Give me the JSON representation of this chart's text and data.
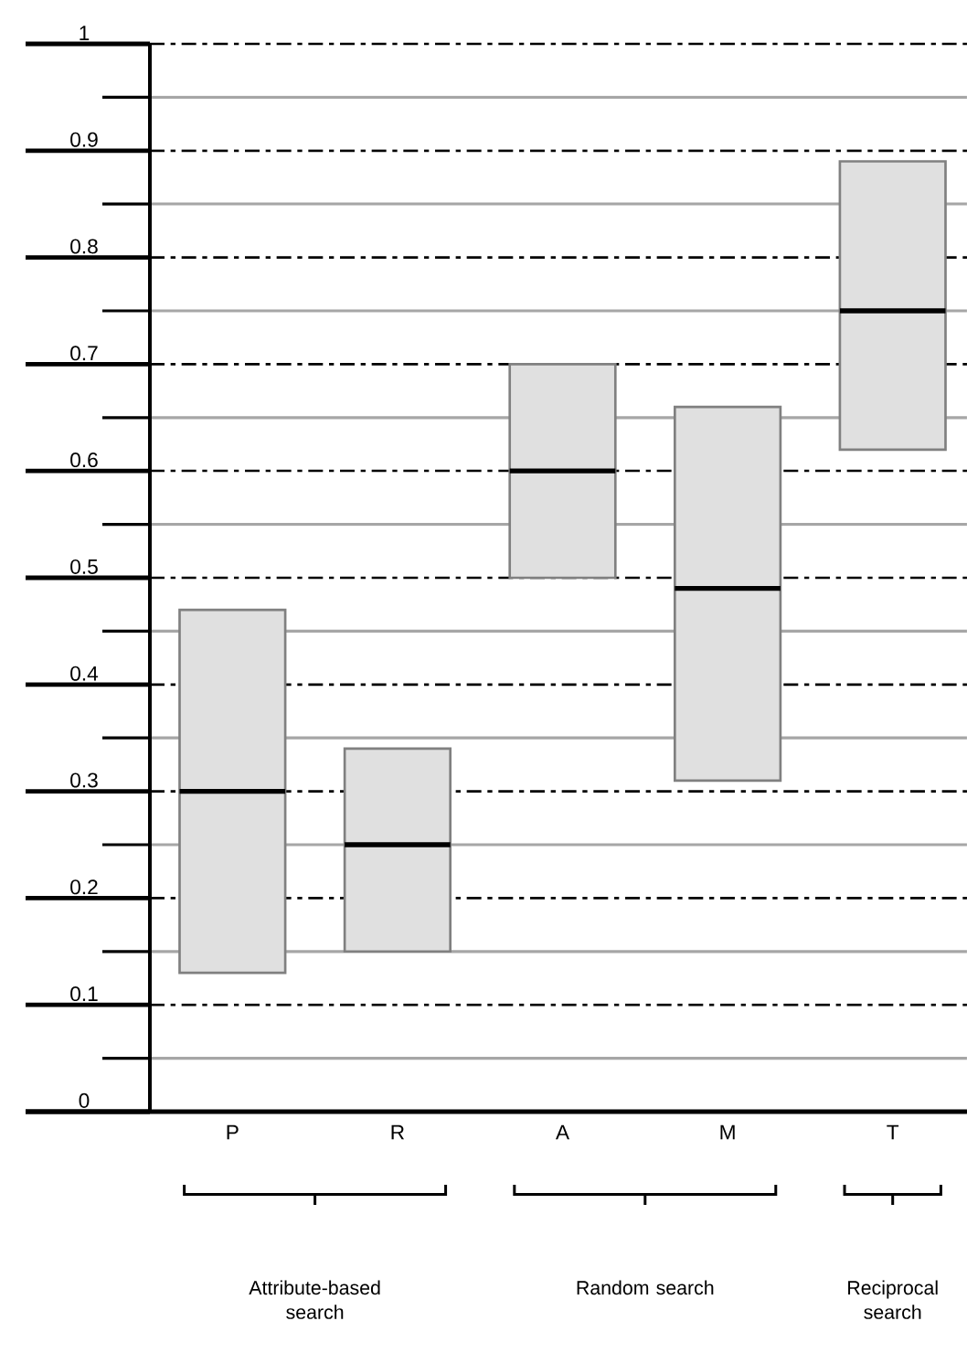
{
  "chart_data": {
    "type": "box",
    "categories": [
      "P",
      "R",
      "A",
      "M",
      "T"
    ],
    "series": [
      {
        "color": "#e0e0e0",
        "boxes": [
          {
            "low": 0.13,
            "q1": 0.13,
            "median": 0.3,
            "q3": 0.47,
            "high": 0.47
          },
          {
            "low": 0.15,
            "q1": 0.15,
            "median": 0.25,
            "q3": 0.34,
            "high": 0.34
          },
          {
            "low": 0.5,
            "q1": 0.5,
            "median": 0.6,
            "q3": 0.7,
            "high": 0.7
          },
          {
            "low": 0.31,
            "q1": 0.31,
            "median": 0.49,
            "q3": 0.66,
            "high": 0.66
          },
          {
            "low": 0.62,
            "q1": 0.62,
            "median": 0.75,
            "q3": 0.89,
            "high": 0.89
          }
        ]
      }
    ],
    "ylim": [
      0,
      1
    ],
    "yticks": [
      0,
      {
        "value": 0.05,
        "label": null
      },
      0.1,
      {
        "value": 0.15,
        "label": null
      },
      0.2,
      {
        "value": 0.25,
        "label": null
      },
      0.3,
      {
        "value": 0.35,
        "label": null
      },
      0.4,
      {
        "value": 0.45,
        "label": null
      },
      0.5,
      {
        "value": 0.55,
        "label": null
      },
      0.6,
      {
        "value": 0.65,
        "label": null
      },
      0.7,
      {
        "value": 0.75,
        "label": null
      },
      0.8,
      {
        "value": 0.85,
        "label": null
      },
      0.9,
      {
        "value": 0.95,
        "label": null
      },
      1
    ],
    "grid": true,
    "annotations": [
      "Attribute-based search",
      "Random search",
      "Reciprocal search"
    ]
  }
}
